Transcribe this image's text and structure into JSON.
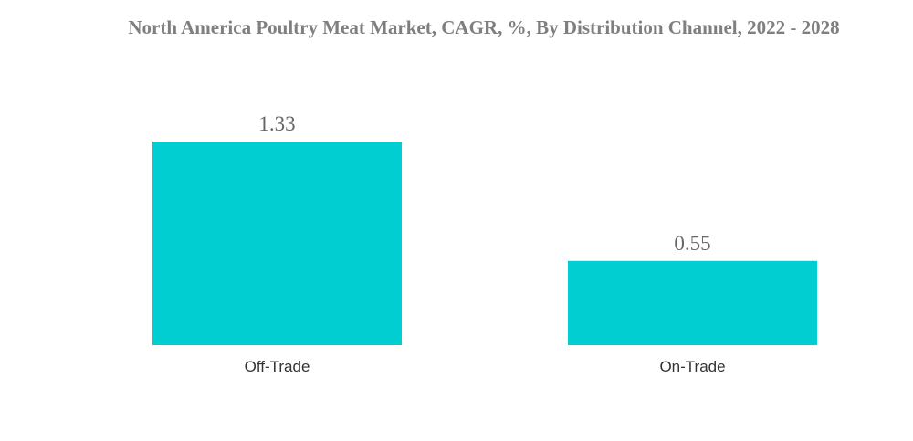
{
  "chart_data": {
    "type": "bar",
    "title": "North America Poultry Meat Market, CAGR, %, By Distribution Channel, 2022 - 2028",
    "categories": [
      "Off-Trade",
      "On-Trade"
    ],
    "values": [
      1.33,
      0.55
    ],
    "color": "#00ced1"
  }
}
